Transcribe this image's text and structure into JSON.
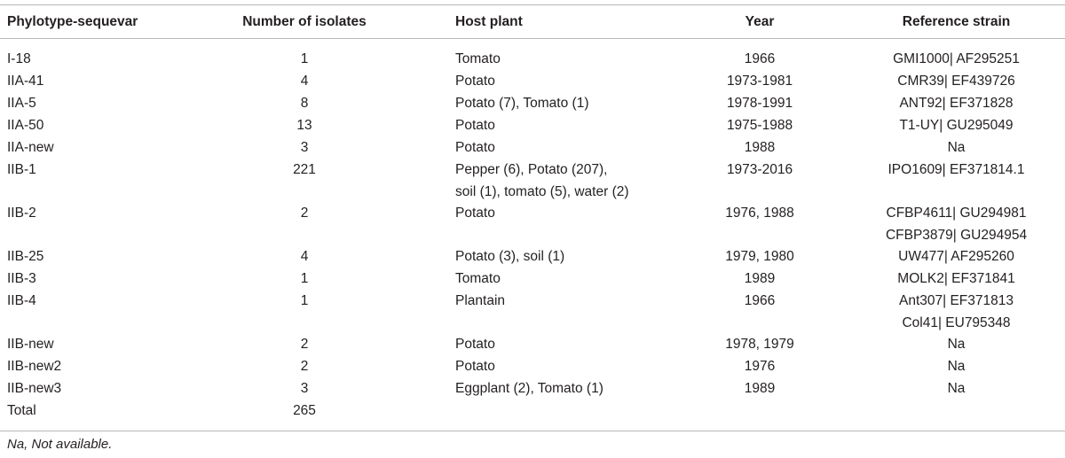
{
  "table": {
    "headers": [
      "Phylotype-sequevar",
      "Number of isolates",
      "Host plant",
      "Year",
      "Reference strain"
    ],
    "rows": [
      {
        "sequevar": "I-18",
        "isolates": "1",
        "host": [
          "Tomato"
        ],
        "year": "1966",
        "reference": [
          "GMI1000| AF295251"
        ]
      },
      {
        "sequevar": "IIA-41",
        "isolates": "4",
        "host": [
          "Potato"
        ],
        "year": "1973-1981",
        "reference": [
          "CMR39| EF439726"
        ]
      },
      {
        "sequevar": "IIA-5",
        "isolates": "8",
        "host": [
          "Potato (7), Tomato (1)"
        ],
        "year": "1978-1991",
        "reference": [
          "ANT92| EF371828"
        ]
      },
      {
        "sequevar": "IIA-50",
        "isolates": "13",
        "host": [
          "Potato"
        ],
        "year": "1975-1988",
        "reference": [
          "T1-UY| GU295049"
        ]
      },
      {
        "sequevar": "IIA-new",
        "isolates": "3",
        "host": [
          "Potato"
        ],
        "year": "1988",
        "reference": [
          "Na"
        ]
      },
      {
        "sequevar": "IIB-1",
        "isolates": "221",
        "host": [
          "Pepper (6), Potato (207),",
          "soil (1), tomato (5), water (2)"
        ],
        "year": "1973-2016",
        "reference": [
          "IPO1609| EF371814.1"
        ]
      },
      {
        "sequevar": "IIB-2",
        "isolates": "2",
        "host": [
          "Potato"
        ],
        "year": "1976, 1988",
        "reference": [
          "CFBP4611| GU294981",
          "CFBP3879| GU294954"
        ]
      },
      {
        "sequevar": "IIB-25",
        "isolates": "4",
        "host": [
          "Potato (3), soil (1)"
        ],
        "year": "1979, 1980",
        "reference": [
          "UW477| AF295260"
        ]
      },
      {
        "sequevar": "IIB-3",
        "isolates": "1",
        "host": [
          "Tomato"
        ],
        "year": "1989",
        "reference": [
          "MOLK2| EF371841"
        ]
      },
      {
        "sequevar": "IIB-4",
        "isolates": "1",
        "host": [
          "Plantain"
        ],
        "year": "1966",
        "reference": [
          "Ant307| EF371813",
          "Col41| EU795348"
        ]
      },
      {
        "sequevar": "IIB-new",
        "isolates": "2",
        "host": [
          "Potato"
        ],
        "year": "1978, 1979",
        "reference": [
          "Na"
        ]
      },
      {
        "sequevar": "IIB-new2",
        "isolates": "2",
        "host": [
          "Potato"
        ],
        "year": "1976",
        "reference": [
          "Na"
        ]
      },
      {
        "sequevar": "IIB-new3",
        "isolates": "3",
        "host": [
          "Eggplant (2), Tomato (1)"
        ],
        "year": "1989",
        "reference": [
          "Na"
        ]
      },
      {
        "sequevar": "Total",
        "isolates": "265",
        "host": [],
        "year": "",
        "reference": []
      }
    ]
  },
  "footnote": "Na, Not available."
}
